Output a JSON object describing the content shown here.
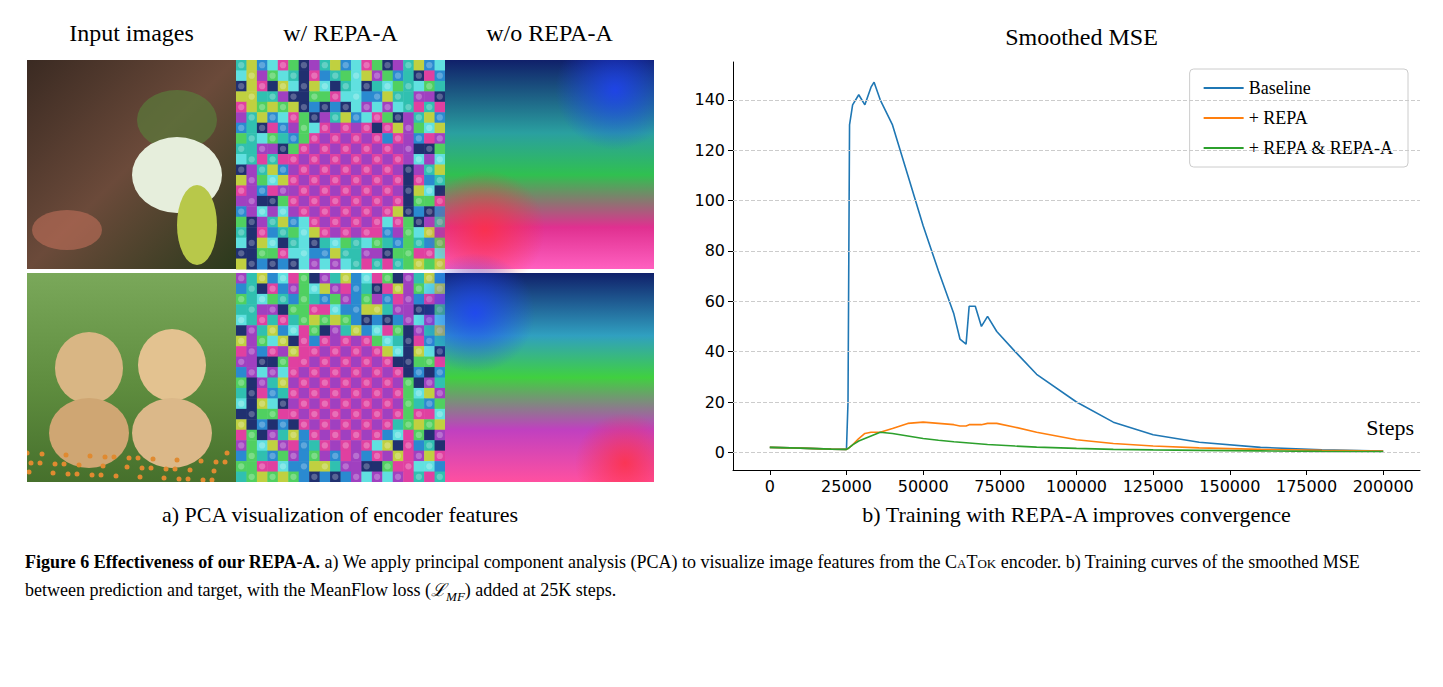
{
  "figure": {
    "label": "Figure 6",
    "title": "Effectiveness of our REPA-A.",
    "text1": "a) We apply principal component analysis (PCA) to visualize image features from the ",
    "small_caps": "CaTok",
    "text2": " encoder. b) Training curves of the smoothed MSE between prediction and target, with the MeanFlow loss (",
    "math": "ℒ",
    "math_sub": "MF",
    "text3": ") added at 25K steps."
  },
  "panel_a": {
    "column_titles": [
      "Input images",
      "w/ REPA-A",
      "w/o REPA-A"
    ],
    "caption": "a) PCA visualization of encoder features"
  },
  "chart_data": {
    "type": "line",
    "title": "Smoothed MSE",
    "caption": "b) Training with REPA-A improves convergence",
    "annotation": "Steps",
    "x": [
      0,
      10000,
      20000,
      25000,
      25500,
      26000,
      27000,
      29000,
      31000,
      33000,
      34000,
      36000,
      40000,
      45000,
      50000,
      55000,
      60000,
      62000,
      64000,
      65000,
      67000,
      69000,
      71000,
      74000,
      80000,
      87000,
      100000,
      112000,
      125000,
      140000,
      160000,
      180000,
      200000
    ],
    "series": [
      {
        "name": "Baseline",
        "color": "#1f77b4",
        "values": [
          2,
          1.7,
          1.3,
          1.2,
          20,
          130,
          138,
          142,
          138,
          145,
          147,
          140,
          130,
          110,
          90,
          72,
          55,
          45,
          43,
          58,
          58,
          50,
          54,
          48,
          40,
          31,
          20,
          12,
          7,
          4,
          2,
          1,
          0.5
        ]
      },
      {
        "name": "+ REPA",
        "color": "#ff7f0e",
        "values": [
          2,
          1.7,
          1.3,
          1.2,
          1.5,
          2,
          3,
          5.5,
          7.5,
          8,
          8,
          8,
          9.5,
          11.5,
          12,
          11.5,
          11,
          10.5,
          10.5,
          11,
          11,
          11,
          11.5,
          11.5,
          10,
          8,
          5,
          3.5,
          2.5,
          1.8,
          1.2,
          0.8,
          0.5
        ]
      },
      {
        "name": "+ REPA & REPA-A",
        "color": "#2ca02c",
        "values": [
          2,
          1.7,
          1.3,
          1.2,
          1.5,
          2,
          3,
          4.5,
          5.5,
          6.5,
          7,
          8,
          7.5,
          6.5,
          5.5,
          4.8,
          4.2,
          4,
          3.8,
          3.7,
          3.5,
          3.3,
          3.1,
          2.9,
          2.5,
          2.1,
          1.6,
          1.2,
          1,
          0.8,
          0.6,
          0.4,
          0.3
        ]
      }
    ],
    "xlim": [
      -12000,
      212000
    ],
    "xticks": [
      0,
      25000,
      50000,
      75000,
      100000,
      125000,
      150000,
      175000,
      200000
    ],
    "ylim": [
      -7,
      155
    ],
    "yticks": [
      0,
      20,
      40,
      60,
      80,
      100,
      120,
      140
    ],
    "grid": "y",
    "legend": "upper right"
  }
}
